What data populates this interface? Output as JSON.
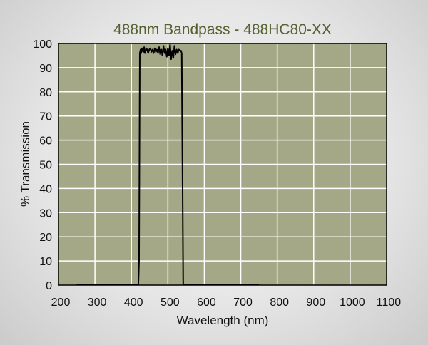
{
  "chart_data": {
    "type": "line",
    "title": "488nm Bandpass - 488HC80-XX",
    "xlabel": "Wavelength (nm)",
    "ylabel": "% Transmission",
    "xlim": [
      200,
      1100
    ],
    "ylim": [
      0,
      100
    ],
    "xticks": [
      200,
      300,
      400,
      500,
      600,
      700,
      800,
      900,
      1000,
      1100
    ],
    "yticks": [
      0,
      10,
      20,
      30,
      40,
      50,
      60,
      70,
      80,
      90,
      100
    ],
    "grid": true,
    "series": [
      {
        "x": [
          250,
          419,
          421,
          423,
          425,
          427,
          429,
          431,
          433,
          435,
          437,
          439,
          441,
          443,
          446,
          449,
          452,
          455,
          458,
          461,
          464,
          467,
          470,
          473,
          476,
          479,
          482,
          485,
          488,
          491,
          494,
          497,
          500,
          503,
          506,
          509,
          512,
          515,
          518,
          521,
          524,
          527,
          530,
          533,
          536,
          538,
          540,
          542,
          545,
          750
        ],
        "y": [
          0,
          0,
          10,
          96,
          97.5,
          96,
          98,
          97,
          96.5,
          98.5,
          96,
          97,
          98,
          97.5,
          96,
          97.5,
          98,
          96.5,
          97.5,
          96,
          98,
          96.5,
          97.5,
          96,
          98.5,
          95.5,
          97.5,
          95,
          99,
          96,
          97.5,
          94.5,
          98,
          95,
          99.5,
          93.5,
          97,
          94,
          99,
          95.5,
          97.5,
          96,
          97.5,
          97,
          97,
          96,
          50,
          0.5,
          0,
          0
        ]
      }
    ]
  },
  "colors": {
    "plot_background": "#a5a886",
    "title": "#55602f",
    "grid": "#ffffff",
    "line": "#000000",
    "border": "#000000"
  }
}
